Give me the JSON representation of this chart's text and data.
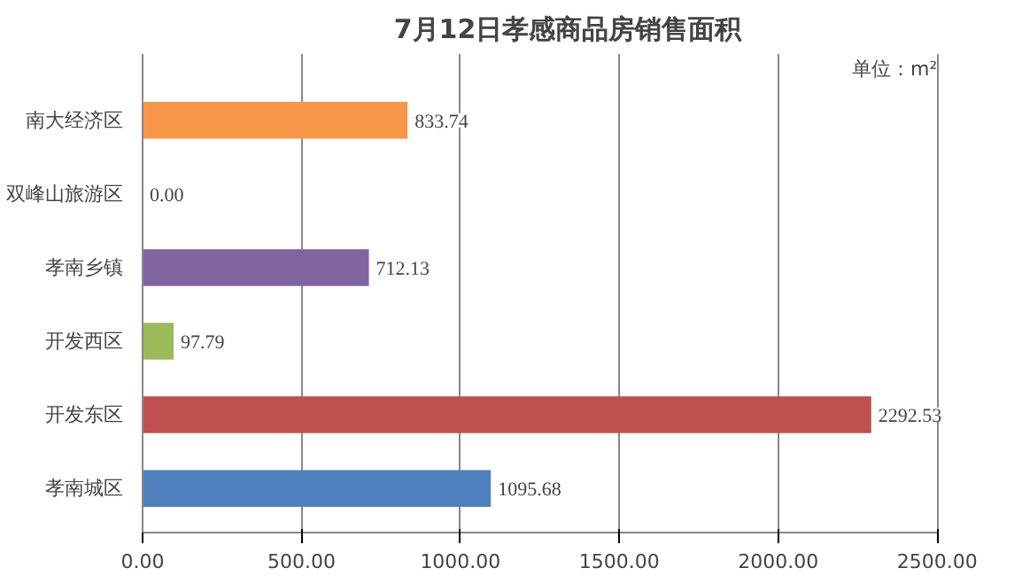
{
  "chart_data": {
    "type": "bar",
    "orientation": "horizontal",
    "title": "7月12日孝感商品房销售面积",
    "annotations": [
      "单位：m²"
    ],
    "categories": [
      "南大经济区",
      "双峰山旅游区",
      "孝南乡镇",
      "开发西区",
      "开发东区",
      "孝南城区"
    ],
    "values": [
      833.74,
      0,
      712.13,
      97.79,
      2292.53,
      1095.68
    ],
    "colors": [
      "#f79646",
      "#4bacc6",
      "#8064a2",
      "#9bbb59",
      "#c0504d",
      "#4f81bd"
    ],
    "value_labels": [
      "833.74",
      "0.00",
      "712.13",
      "97.79",
      "2292.53",
      "1095.68"
    ],
    "xlim": [
      0,
      2500
    ],
    "xticks": [
      {
        "value": 0,
        "label": "0.00"
      },
      {
        "value": 500,
        "label": "500.00"
      },
      {
        "value": 1000,
        "label": "1000.00"
      },
      {
        "value": 1500,
        "label": "1500.00"
      },
      {
        "value": 2000,
        "label": "2000.00"
      },
      {
        "value": 2500,
        "label": "2500.00"
      }
    ],
    "grid": "x"
  }
}
